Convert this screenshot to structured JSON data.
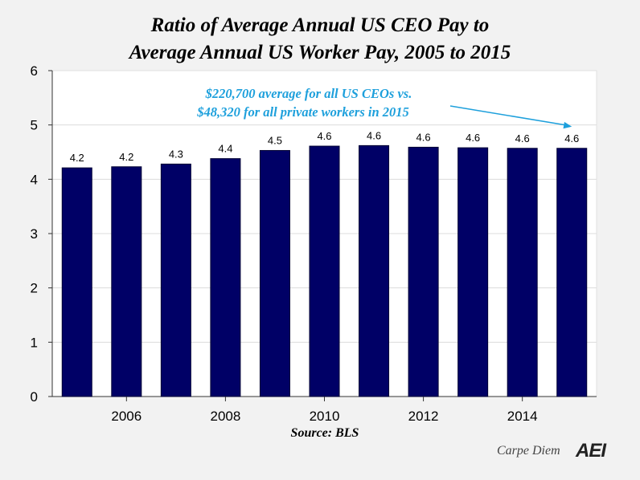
{
  "chart_data": {
    "type": "bar",
    "title_lines": [
      "Ratio of Average Annual US CEO Pay to",
      "Average Annual US Worker Pay, 2005 to 2015"
    ],
    "categories": [
      "2005",
      "2006",
      "2007",
      "2008",
      "2009",
      "2010",
      "2011",
      "2012",
      "2013",
      "2014",
      "2015"
    ],
    "values": [
      4.21,
      4.23,
      4.28,
      4.38,
      4.53,
      4.61,
      4.62,
      4.59,
      4.58,
      4.57,
      4.57
    ],
    "data_labels": [
      "4.2",
      "4.2",
      "4.3",
      "4.4",
      "4.5",
      "4.6",
      "4.6",
      "4.6",
      "4.6",
      "4.6",
      "4.6"
    ],
    "x_tick_labels": [
      {
        "label": "2006",
        "category": "2006"
      },
      {
        "label": "2008",
        "category": "2008"
      },
      {
        "label": "2010",
        "category": "2010"
      },
      {
        "label": "2012",
        "category": "2012"
      },
      {
        "label": "2014",
        "category": "2014"
      }
    ],
    "y_ticks": [
      "0",
      "1",
      "2",
      "3",
      "4",
      "5",
      "6"
    ],
    "ylim": [
      0,
      6
    ],
    "grid": true,
    "bar_color": "#000066",
    "annotation": {
      "lines": [
        "$220,700 average for all US CEOs vs.",
        "$48,320 for all private workers in 2015"
      ],
      "color": "#1ea0dc",
      "points_to": "2015"
    },
    "source": "Source: BLS"
  },
  "branding": {
    "text": "Carpe Diem",
    "logo": "AEI"
  }
}
